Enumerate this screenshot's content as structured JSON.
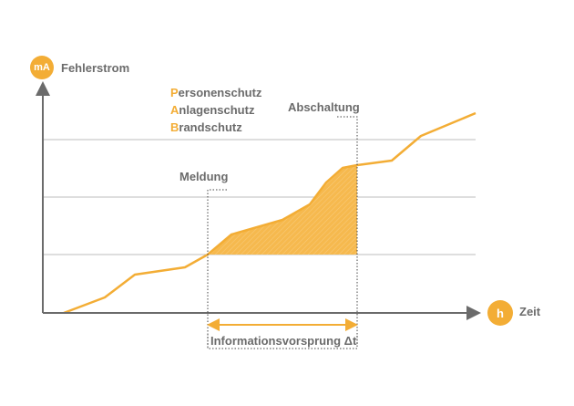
{
  "y_axis": {
    "unit_badge": "mA",
    "label": "Fehlerstrom"
  },
  "x_axis": {
    "unit_badge": "h",
    "label": "Zeit"
  },
  "protection_labels": [
    {
      "initial": "P",
      "rest": "ersonenschutz"
    },
    {
      "initial": "A",
      "rest": "nlagenschutz"
    },
    {
      "initial": "B",
      "rest": "randschutz"
    }
  ],
  "annotations": {
    "warning": "Meldung",
    "shutdown": "Abschaltung",
    "lead_time": "Informationsvorsprung Δt"
  },
  "colors": {
    "accent": "#f3ad35",
    "axis": "#6b6b6b",
    "threshold": "#bdbdbd",
    "text": "#6b6b6b"
  }
}
